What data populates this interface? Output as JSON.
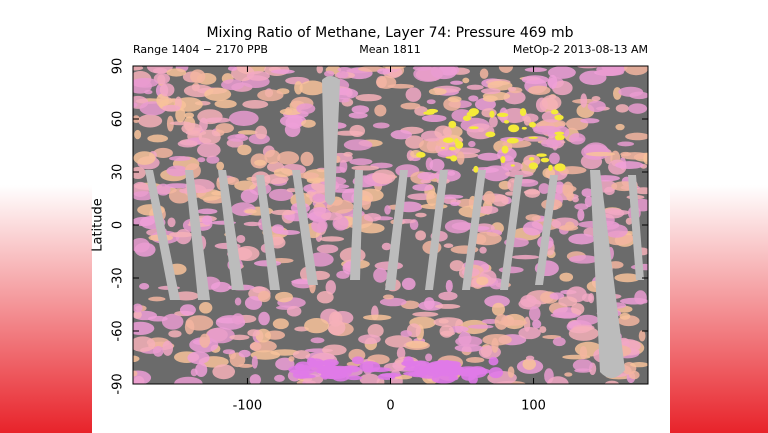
{
  "chart_data": {
    "type": "map",
    "title": "Mixing Ratio of Methane, Layer 74: Pressure 469 mb",
    "range_label": "Range 1404 − 2170 PPB",
    "mean_label": "Mean 1811",
    "source_label": "MetOp-2 2013-08-13 AM",
    "ylabel": "Latitude",
    "xlim": [
      -180,
      180
    ],
    "xticks": [
      -100,
      0,
      100
    ],
    "ylim": [
      -90,
      90
    ],
    "yticks": [
      -90,
      -60,
      -30,
      0,
      30,
      60,
      90
    ]
  }
}
